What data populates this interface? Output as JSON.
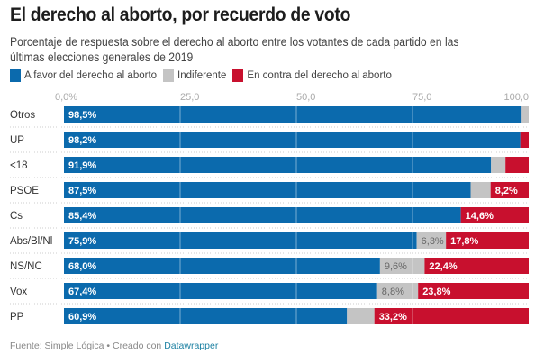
{
  "header": {
    "title": "El derecho al aborto, por recuerdo de voto",
    "subtitle": "Porcentaje de respuesta sobre el derecho al aborto entre los votantes de cada partido en las últimas elecciones generales de 2019"
  },
  "legend": [
    {
      "label": "A favor del derecho al aborto",
      "color": "#0b6aad"
    },
    {
      "label": "Indiferente",
      "color": "#c4c4c4"
    },
    {
      "label": "En contra del derecho al aborto",
      "color": "#c8102e"
    }
  ],
  "footer": {
    "source": "Fuente: Simple Lógica • Creado con ",
    "link": "Datawrapper"
  },
  "chart_data": {
    "type": "bar",
    "orientation": "horizontal",
    "stacked": true,
    "title": "El derecho al aborto, por recuerdo de voto",
    "xlabel": "",
    "ylabel": "",
    "xlim": [
      0,
      100
    ],
    "x_ticks": [
      "0,0%",
      "25,0",
      "50,0",
      "75,0",
      "100,0"
    ],
    "x_tick_values": [
      0,
      25,
      50,
      75,
      100
    ],
    "grid": true,
    "legend_position": "top-left",
    "categories": [
      "Otros",
      "UP",
      "<18",
      "PSOE",
      "Cs",
      "Abs/Bl/Nl",
      "NS/NC",
      "Vox",
      "PP"
    ],
    "series": [
      {
        "name": "A favor del derecho al aborto",
        "color": "#0b6aad",
        "values": [
          98.5,
          98.2,
          91.9,
          87.5,
          85.4,
          75.9,
          68.0,
          67.4,
          60.9
        ],
        "labels": [
          "98,5%",
          "98,2%",
          "91,9%",
          "87,5%",
          "85,4%",
          "75,9%",
          "68,0%",
          "67,4%",
          "60,9%"
        ]
      },
      {
        "name": "Indiferente",
        "color": "#c4c4c4",
        "values": [
          1.5,
          0.0,
          3.1,
          4.3,
          0.0,
          6.3,
          9.6,
          8.8,
          5.9
        ],
        "labels": [
          "",
          "",
          "",
          "",
          "",
          "6,3%",
          "9,6%",
          "8,8%",
          ""
        ]
      },
      {
        "name": "En contra del derecho al aborto",
        "color": "#c8102e",
        "values": [
          0.0,
          1.8,
          5.0,
          8.2,
          14.6,
          17.8,
          22.4,
          23.8,
          33.2
        ],
        "labels": [
          "",
          "",
          "",
          "8,2%",
          "14,6%",
          "17,8%",
          "22,4%",
          "23,8%",
          "33,2%"
        ]
      }
    ]
  }
}
